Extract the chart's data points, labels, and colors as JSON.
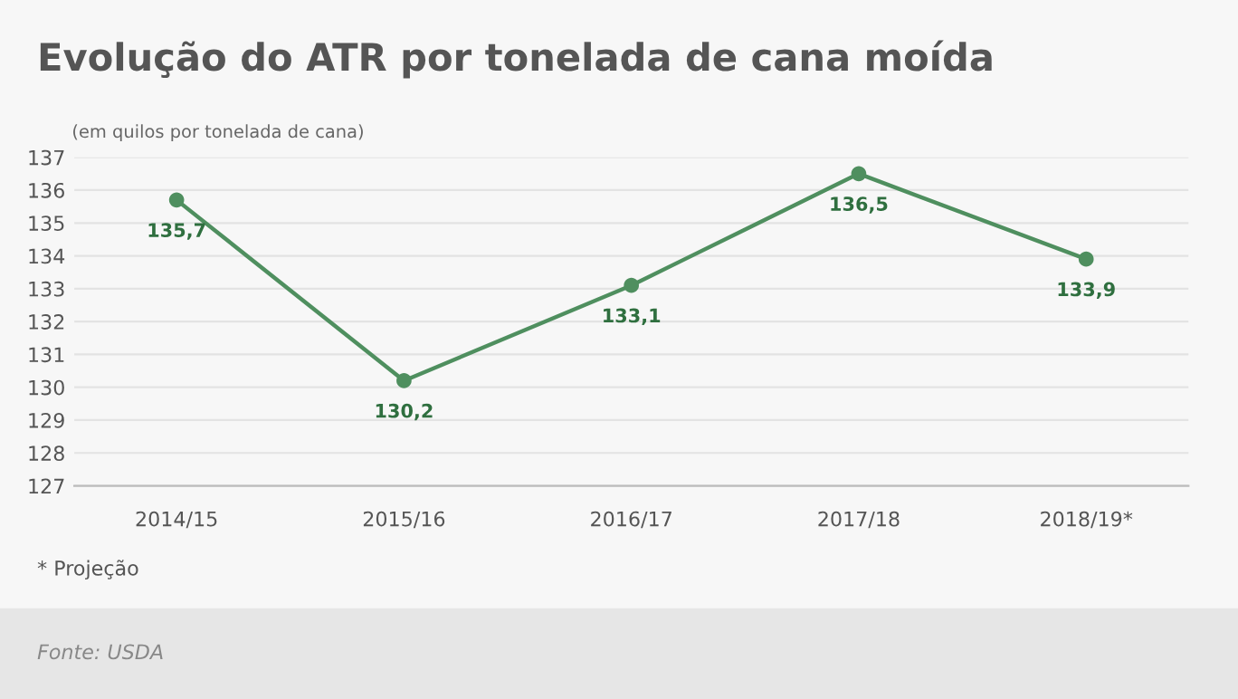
{
  "chart_data": {
    "type": "line",
    "title": "Evolução do ATR por tonelada de cana moída",
    "ylabel": "(em quilos por tonelada de cana)",
    "categories": [
      "2014/15",
      "2015/16",
      "2016/17",
      "2017/18",
      "2018/19*"
    ],
    "series": [
      {
        "color": "#4f8f5f",
        "values": [
          135.7,
          130.2,
          133.1,
          136.5,
          133.9
        ],
        "value_labels": [
          "135,7",
          "130,2",
          "133,1",
          "136,5",
          "133,9"
        ]
      }
    ],
    "ylim": [
      127,
      137
    ],
    "yticks": [
      127,
      128,
      129,
      130,
      131,
      132,
      133,
      134,
      135,
      136,
      137
    ],
    "grid": "y",
    "marker": "circle",
    "line_style": "solid",
    "legend": false,
    "annotations": [
      "* Projeção",
      "Fonte: USDA"
    ]
  }
}
